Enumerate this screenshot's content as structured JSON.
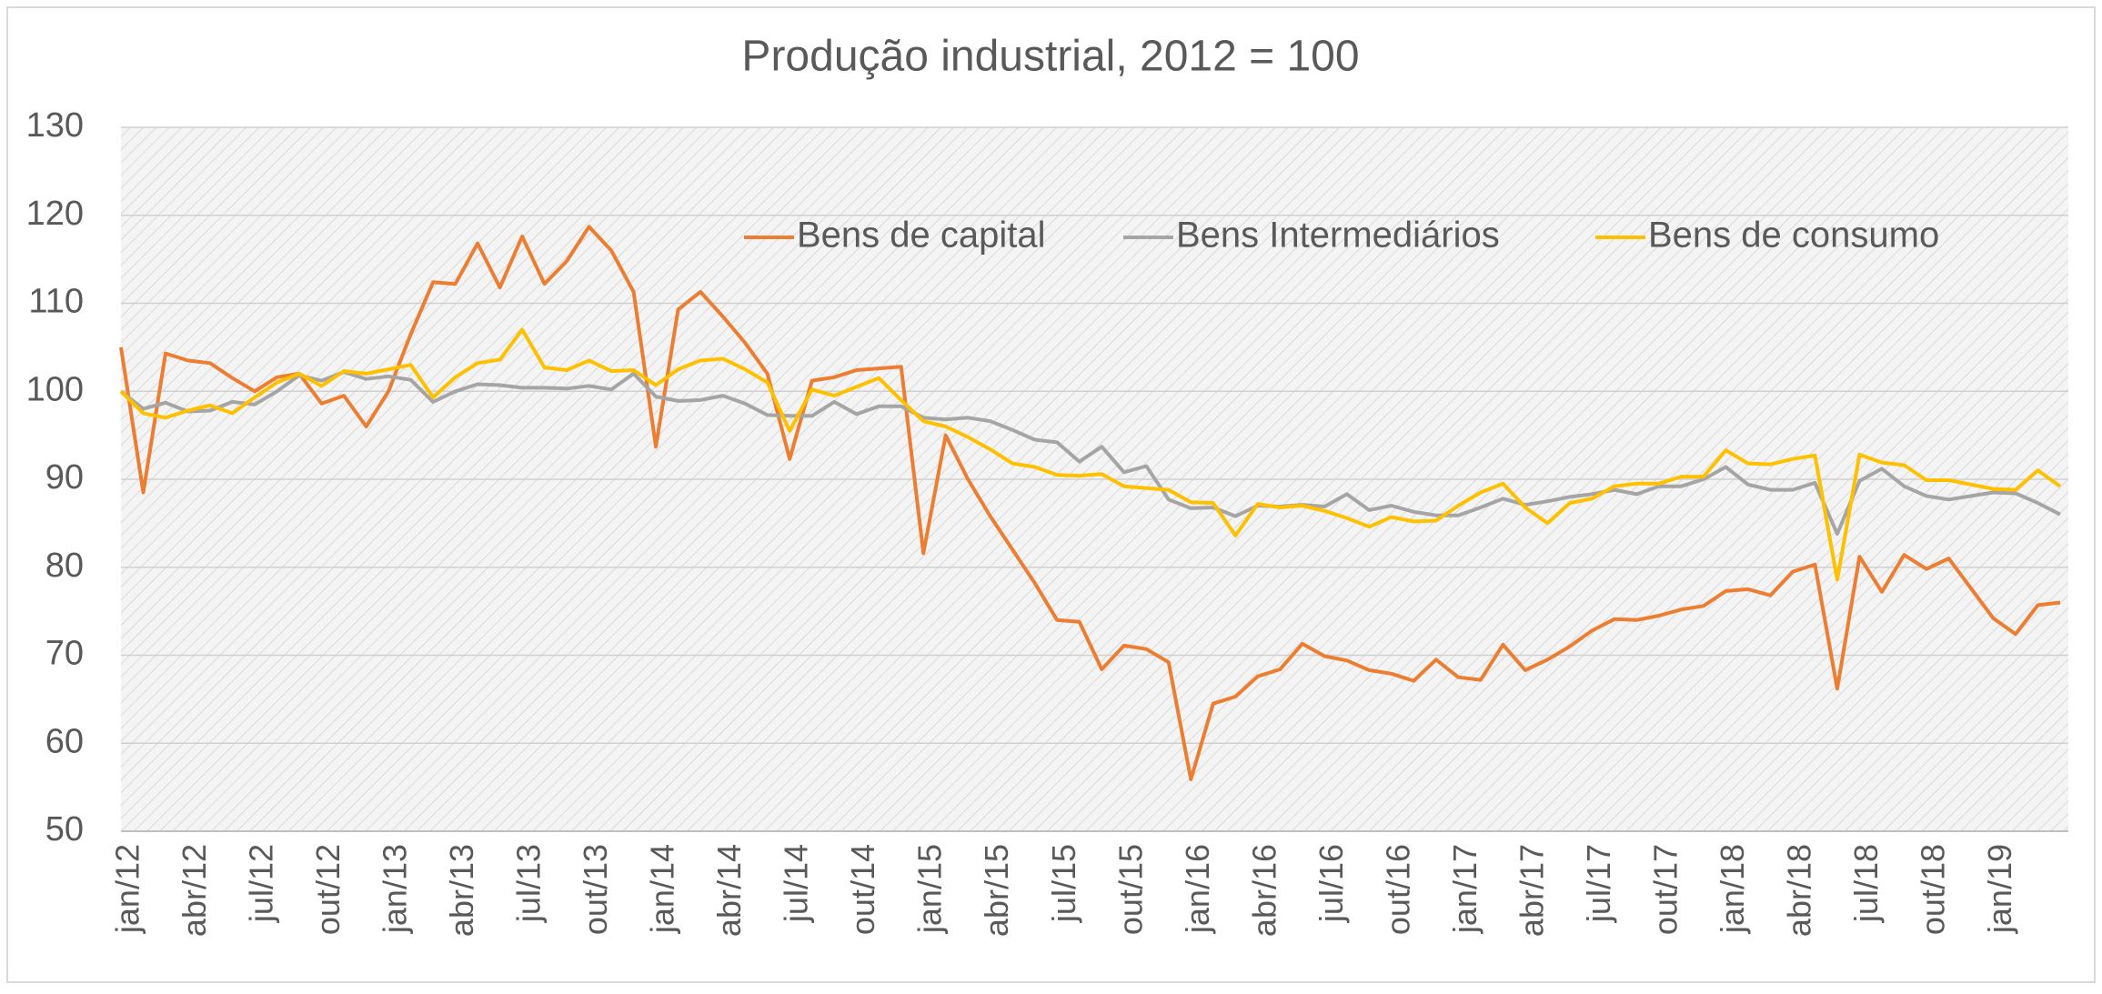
{
  "chart_data": {
    "type": "line",
    "title": "Produção industrial, 2012 = 100",
    "categories": [
      "jan/12",
      null,
      null,
      "abr/12",
      null,
      null,
      "jul/12",
      null,
      null,
      "out/12",
      null,
      null,
      "jan/13",
      null,
      null,
      "abr/13",
      null,
      null,
      "jul/13",
      null,
      null,
      "out/13",
      null,
      null,
      "jan/14",
      null,
      null,
      "abr/14",
      null,
      null,
      "jul/14",
      null,
      null,
      "out/14",
      null,
      null,
      "jan/15",
      null,
      null,
      "abr/15",
      null,
      null,
      "jul/15",
      null,
      null,
      "out/15",
      null,
      null,
      "jan/16",
      null,
      null,
      "abr/16",
      null,
      null,
      "jul/16",
      null,
      null,
      "out/16",
      null,
      null,
      "jan/17",
      null,
      null,
      "abr/17",
      null,
      null,
      "jul/17",
      null,
      null,
      "out/17",
      null,
      null,
      "jan/18",
      null,
      null,
      "abr/18",
      null,
      null,
      "jul/18",
      null,
      null,
      "out/18",
      null,
      null,
      "jan/19",
      null,
      null,
      null
    ],
    "series": [
      {
        "name": "Bens de capital",
        "color": "#ed7d31",
        "values": [
          105,
          88.5,
          104.3,
          103.5,
          103.2,
          101.5,
          100,
          101.6,
          102,
          98.6,
          99.5,
          96,
          100,
          106.5,
          112.4,
          112.2,
          116.8,
          111.8,
          117.6,
          112.2,
          114.8,
          118.7,
          116,
          111.3,
          93.7,
          109.3,
          111.3,
          108.5,
          105.5,
          102,
          92.3,
          101.2,
          101.6,
          102.4,
          102.6,
          102.8,
          81.6,
          95,
          90,
          85.8,
          82,
          78.2,
          74,
          73.8,
          68.4,
          71.1,
          70.7,
          69.2,
          55.9,
          64.5,
          65.3,
          67.6,
          68.4,
          71.3,
          69.9,
          69.4,
          68.3,
          67.9,
          67.1,
          69.5,
          67.5,
          67.2,
          71.2,
          68.3,
          69.5,
          71,
          72.8,
          74.1,
          74,
          74.5,
          75.2,
          75.6,
          77.3,
          77.5,
          76.8,
          79.5,
          80.3,
          66.2,
          81.2,
          77.2,
          81.4,
          79.8,
          81,
          77.6,
          74.2,
          72.4,
          75.7,
          76
        ]
      },
      {
        "name": "Bens Intermediários",
        "color": "#a5a5a5",
        "values": [
          100,
          98,
          98.7,
          97.7,
          97.8,
          98.8,
          98.5,
          100,
          101.8,
          101.2,
          102.2,
          101.4,
          101.7,
          101.3,
          98.8,
          100,
          100.8,
          100.7,
          100.4,
          100.4,
          100.3,
          100.6,
          100.2,
          102,
          99.4,
          98.9,
          99,
          99.5,
          98.6,
          97.3,
          97.2,
          97.2,
          98.8,
          97.4,
          98.3,
          98.3,
          97,
          96.8,
          97,
          96.6,
          95.6,
          94.5,
          94.2,
          92,
          93.7,
          90.8,
          91.5,
          87.7,
          86.7,
          86.8,
          85.8,
          87,
          86.9,
          87.1,
          86.9,
          88.3,
          86.5,
          87,
          86.3,
          85.9,
          85.9,
          86.8,
          87.8,
          87.1,
          87.5,
          88,
          88.3,
          88.8,
          88.3,
          89.2,
          89.2,
          90,
          91.4,
          89.4,
          88.8,
          88.8,
          89.6,
          83.8,
          89.8,
          91.2,
          89.2,
          88.1,
          87.7,
          88.1,
          88.5,
          88.4,
          87.3,
          86
        ]
      },
      {
        "name": "Bens de consumo",
        "color": "#ffc000",
        "values": [
          100,
          97.5,
          97,
          97.8,
          98.4,
          97.5,
          99.3,
          101,
          102,
          100.6,
          102.3,
          102,
          102.5,
          103,
          99.3,
          101.6,
          103.2,
          103.6,
          107,
          102.7,
          102.4,
          103.5,
          102.3,
          102.4,
          100.7,
          102.5,
          103.5,
          103.7,
          102.5,
          101,
          95.5,
          100.2,
          99.5,
          100.5,
          101.5,
          99,
          96.6,
          96,
          94.8,
          93.4,
          91.8,
          91.4,
          90.5,
          90.4,
          90.6,
          89.2,
          89,
          88.8,
          87.4,
          87.3,
          83.6,
          87.2,
          86.8,
          87,
          86.4,
          85.6,
          84.6,
          85.7,
          85.2,
          85.3,
          87,
          88.5,
          89.5,
          86.8,
          85,
          87.3,
          87.8,
          89.2,
          89.5,
          89.5,
          90.3,
          90.3,
          93.3,
          91.8,
          91.7,
          92.3,
          92.7,
          78.6,
          92.8,
          91.9,
          91.6,
          89.9,
          89.9,
          89.4,
          88.9,
          88.8,
          91,
          89.2
        ]
      }
    ],
    "ylim": [
      50,
      130
    ],
    "yticks": [
      50,
      60,
      70,
      80,
      90,
      100,
      110,
      120,
      130
    ],
    "grid": true,
    "legend": "top"
  }
}
